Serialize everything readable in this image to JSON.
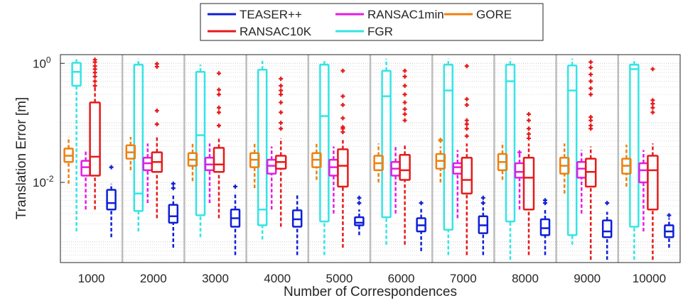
{
  "chart_data": {
    "type": "box",
    "xlabel": "Number of Correspondences",
    "ylabel": "Translation Error [m]",
    "yscale": "log",
    "ylim": [
      0.00045,
      1.4
    ],
    "yticks": [
      {
        "value": 1,
        "base": "10",
        "exp": "0"
      },
      {
        "value": 0.01,
        "base": "10",
        "exp": "-2"
      }
    ],
    "grid": true,
    "legend_position": "top-center",
    "categories": [
      "1000",
      "2000",
      "3000",
      "4000",
      "5000",
      "6000",
      "7000",
      "8000",
      "9000",
      "10000"
    ],
    "series": [
      {
        "name": "GORE",
        "color": "#F07F0D",
        "boxes": [
          {
            "whisker_low": 0.0095,
            "q1": 0.022,
            "median": 0.028,
            "q3": 0.037,
            "whisker_high": 0.058,
            "outliers": []
          },
          {
            "whisker_low": 0.016,
            "q1": 0.025,
            "median": 0.032,
            "q3": 0.042,
            "whisker_high": 0.058,
            "outliers": []
          },
          {
            "whisker_low": 0.0105,
            "q1": 0.019,
            "median": 0.024,
            "q3": 0.031,
            "whisker_high": 0.048,
            "outliers": []
          },
          {
            "whisker_low": 0.008,
            "q1": 0.018,
            "median": 0.024,
            "q3": 0.031,
            "whisker_high": 0.046,
            "outliers": []
          },
          {
            "whisker_low": 0.011,
            "q1": 0.018,
            "median": 0.024,
            "q3": 0.031,
            "whisker_high": 0.048,
            "outliers": []
          },
          {
            "whisker_low": 0.01,
            "q1": 0.016,
            "median": 0.021,
            "q3": 0.028,
            "whisker_high": 0.045,
            "outliers": []
          },
          {
            "whisker_low": 0.01,
            "q1": 0.017,
            "median": 0.023,
            "q3": 0.03,
            "whisker_high": 0.04,
            "outliers": [
              0.05,
              0.052
            ]
          },
          {
            "whisker_low": 0.011,
            "q1": 0.016,
            "median": 0.022,
            "q3": 0.03,
            "whisker_high": 0.047,
            "outliers": []
          },
          {
            "whisker_low": 0.0065,
            "q1": 0.014,
            "median": 0.019,
            "q3": 0.026,
            "whisker_high": 0.045,
            "outliers": []
          },
          {
            "whisker_low": 0.0085,
            "q1": 0.014,
            "median": 0.019,
            "q3": 0.025,
            "whisker_high": 0.043,
            "outliers": []
          }
        ]
      },
      {
        "name": "FGR",
        "color": "#33E5E5",
        "boxes": [
          {
            "whisker_low": 0.0015,
            "q1": 0.42,
            "median": 0.72,
            "q3": 1.02,
            "whisker_high": 1.2,
            "outliers": []
          },
          {
            "whisker_low": 0.0015,
            "q1": 0.0033,
            "median": 0.0065,
            "q3": 0.95,
            "whisker_high": 1.2,
            "outliers": []
          },
          {
            "whisker_low": 0.0012,
            "q1": 0.0028,
            "median": 0.062,
            "q3": 0.72,
            "whisker_high": 0.95,
            "outliers": []
          },
          {
            "whisker_low": 0.0011,
            "q1": 0.0019,
            "median": 0.0035,
            "q3": 0.78,
            "whisker_high": 1.1,
            "outliers": []
          },
          {
            "whisker_low": 0.0006,
            "q1": 0.0022,
            "median": 0.13,
            "q3": 0.95,
            "whisker_high": 1.1,
            "outliers": []
          },
          {
            "whisker_low": 0.0009,
            "q1": 0.0026,
            "median": 0.28,
            "q3": 0.75,
            "whisker_high": 1.2,
            "outliers": []
          },
          {
            "whisker_low": 0.0006,
            "q1": 0.0016,
            "median": 0.35,
            "q3": 0.95,
            "whisker_high": 1.2,
            "outliers": []
          },
          {
            "whisker_low": 0.0005,
            "q1": 0.0022,
            "median": 0.5,
            "q3": 0.95,
            "whisker_high": 1.2,
            "outliers": []
          },
          {
            "whisker_low": 0.0009,
            "q1": 0.0013,
            "median": 0.35,
            "q3": 0.92,
            "whisker_high": 1.2,
            "outliers": []
          },
          {
            "whisker_low": 0.0005,
            "q1": 0.0018,
            "median": 0.8,
            "q3": 0.95,
            "whisker_high": 1.2,
            "outliers": []
          }
        ]
      },
      {
        "name": "RANSAC1min",
        "color": "#E61AE6",
        "boxes": [
          {
            "whisker_low": 0.0035,
            "q1": 0.013,
            "median": 0.018,
            "q3": 0.023,
            "whisker_high": 0.035,
            "outliers": []
          },
          {
            "whisker_low": 0.0045,
            "q1": 0.016,
            "median": 0.021,
            "q3": 0.026,
            "whisker_high": 0.045,
            "outliers": []
          },
          {
            "whisker_low": 0.0045,
            "q1": 0.016,
            "median": 0.02,
            "q3": 0.026,
            "whisker_high": 0.045,
            "outliers": []
          },
          {
            "whisker_low": 0.0035,
            "q1": 0.014,
            "median": 0.019,
            "q3": 0.024,
            "whisker_high": 0.04,
            "outliers": []
          },
          {
            "whisker_low": 0.003,
            "q1": 0.013,
            "median": 0.018,
            "q3": 0.024,
            "whisker_high": 0.04,
            "outliers": []
          },
          {
            "whisker_low": 0.003,
            "q1": 0.013,
            "median": 0.017,
            "q3": 0.022,
            "whisker_high": 0.04,
            "outliers": []
          },
          {
            "whisker_low": 0.0025,
            "q1": 0.014,
            "median": 0.018,
            "q3": 0.021,
            "whisker_high": 0.035,
            "outliers": []
          },
          {
            "whisker_low": 0.0035,
            "q1": 0.012,
            "median": 0.015,
            "q3": 0.021,
            "whisker_high": 0.03,
            "outliers": [
              0.032
            ]
          },
          {
            "whisker_low": 0.003,
            "q1": 0.012,
            "median": 0.017,
            "q3": 0.022,
            "whisker_high": 0.035,
            "outliers": []
          },
          {
            "whisker_low": 0.0015,
            "q1": 0.01,
            "median": 0.016,
            "q3": 0.021,
            "whisker_high": 0.035,
            "outliers": []
          }
        ]
      },
      {
        "name": "RANSAC10K",
        "color": "#E61A1A",
        "boxes": [
          {
            "whisker_low": 0.0035,
            "q1": 0.013,
            "median": 0.027,
            "q3": 0.22,
            "whisker_high": 0.4,
            "outliers": [
              0.42,
              0.5,
              0.6,
              0.7,
              0.8,
              0.9,
              1.05,
              1.15
            ]
          },
          {
            "whisker_low": 0.0025,
            "q1": 0.015,
            "median": 0.022,
            "q3": 0.032,
            "whisker_high": 0.06,
            "outliers": [
              0.095,
              0.16,
              0.88,
              0.98
            ]
          },
          {
            "whisker_low": 0.0025,
            "q1": 0.015,
            "median": 0.02,
            "q3": 0.038,
            "whisker_high": 0.055,
            "outliers": [
              0.09,
              0.15,
              0.18,
              0.3,
              0.36,
              0.68
            ]
          },
          {
            "whisker_low": 0.0018,
            "q1": 0.017,
            "median": 0.022,
            "q3": 0.028,
            "whisker_high": 0.055,
            "outliers": [
              0.08,
              0.1,
              0.15,
              0.22,
              0.3,
              0.35,
              0.42,
              0.55
            ]
          },
          {
            "whisker_low": 0.0008,
            "q1": 0.0085,
            "median": 0.019,
            "q3": 0.036,
            "whisker_high": 0.055,
            "outliers": [
              0.07,
              0.08,
              0.085,
              0.12,
              0.2,
              0.28,
              0.75
            ]
          },
          {
            "whisker_low": 0.0009,
            "q1": 0.011,
            "median": 0.016,
            "q3": 0.029,
            "whisker_high": 0.045,
            "outliers": [
              0.11,
              0.14,
              0.17,
              0.22,
              0.3,
              0.42,
              0.6,
              0.75
            ]
          },
          {
            "whisker_low": 0.0006,
            "q1": 0.0065,
            "median": 0.011,
            "q3": 0.026,
            "whisker_high": 0.045,
            "outliers": [
              0.06,
              0.08,
              0.095,
              0.11,
              0.2,
              0.25,
              0.9
            ]
          },
          {
            "whisker_low": 0.0006,
            "q1": 0.0035,
            "median": 0.012,
            "q3": 0.026,
            "whisker_high": 0.045,
            "outliers": [
              0.055,
              0.065,
              0.08,
              0.11,
              0.14
            ]
          },
          {
            "whisker_low": 0.0005,
            "q1": 0.0085,
            "median": 0.015,
            "q3": 0.025,
            "whisker_high": 0.04,
            "outliers": [
              0.08,
              0.09,
              0.11,
              0.125,
              0.3,
              0.38,
              0.5,
              0.65,
              0.85,
              1.05
            ]
          },
          {
            "whisker_low": 0.0005,
            "q1": 0.0035,
            "median": 0.016,
            "q3": 0.028,
            "whisker_high": 0.045,
            "outliers": [
              0.15,
              0.18,
              0.21,
              0.24,
              0.8
            ]
          }
        ]
      },
      {
        "name": "TEASER++",
        "color": "#0D1FD6",
        "boxes": [
          {
            "whisker_low": 0.0012,
            "q1": 0.0035,
            "median": 0.0045,
            "q3": 0.0075,
            "whisker_high": 0.0095,
            "outliers": [
              0.018
            ]
          },
          {
            "whisker_low": 0.0008,
            "q1": 0.0021,
            "median": 0.0027,
            "q3": 0.0042,
            "whisker_high": 0.0062,
            "outliers": [
              0.008,
              0.0095
            ]
          },
          {
            "whisker_low": 0.0006,
            "q1": 0.0018,
            "median": 0.0025,
            "q3": 0.0035,
            "whisker_high": 0.0068,
            "outliers": [
              0.0085
            ]
          },
          {
            "whisker_low": 0.0006,
            "q1": 0.0018,
            "median": 0.0024,
            "q3": 0.0034,
            "whisker_high": 0.0065,
            "outliers": []
          },
          {
            "whisker_low": 0.0013,
            "q1": 0.0019,
            "median": 0.0021,
            "q3": 0.0026,
            "whisker_high": 0.0035,
            "outliers": [
              0.0045,
              0.0055
            ]
          },
          {
            "whisker_low": 0.0007,
            "q1": 0.0015,
            "median": 0.0019,
            "q3": 0.0025,
            "whisker_high": 0.0038,
            "outliers": [
              0.0045
            ]
          },
          {
            "whisker_low": 0.0006,
            "q1": 0.0014,
            "median": 0.0019,
            "q3": 0.0027,
            "whisker_high": 0.0038,
            "outliers": [
              0.0045,
              0.0055
            ]
          },
          {
            "whisker_low": 0.0006,
            "q1": 0.0013,
            "median": 0.0017,
            "q3": 0.0024,
            "whisker_high": 0.0036,
            "outliers": [
              0.0045,
              0.005
            ]
          },
          {
            "whisker_low": 0.0005,
            "q1": 0.0012,
            "median": 0.0015,
            "q3": 0.0023,
            "whisker_high": 0.0032,
            "outliers": [
              0.0045
            ]
          },
          {
            "whisker_low": 0.0008,
            "q1": 0.0012,
            "median": 0.0015,
            "q3": 0.0019,
            "whisker_high": 0.0025,
            "outliers": [
              0.0028
            ]
          }
        ]
      }
    ],
    "legend": [
      {
        "name": "TEASER++",
        "color": "#0D1FD6"
      },
      {
        "name": "RANSAC1min",
        "color": "#E61AE6"
      },
      {
        "name": "GORE",
        "color": "#F07F0D"
      },
      {
        "name": "RANSAC10K",
        "color": "#E61A1A"
      },
      {
        "name": "FGR",
        "color": "#33E5E5"
      }
    ]
  }
}
